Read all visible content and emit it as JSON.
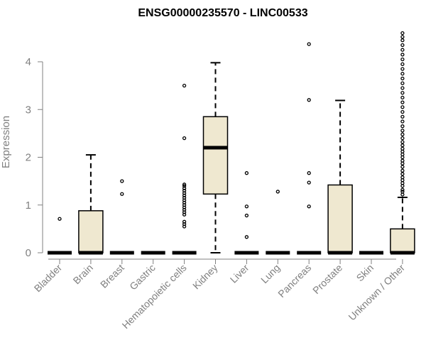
{
  "chart_data": {
    "type": "box",
    "title": "ENSG00000235570 - LINC00533",
    "xlabel": "",
    "ylabel": "Expression",
    "ylim": [
      0,
      4.6
    ],
    "yticks": [
      0,
      1,
      2,
      3,
      4
    ],
    "ytick_labels": [
      "0",
      "1",
      "2",
      "3",
      "4"
    ],
    "box_fill": "#EFE8D0",
    "categories": [
      "Bladder",
      "Brain",
      "Breast",
      "Gastric",
      "Hematopoietic cells",
      "Kidney",
      "Liver",
      "Lung",
      "Pancreas",
      "Prostate",
      "Skin",
      "Unknown / Other"
    ],
    "boxes": [
      {
        "category": "Bladder",
        "min": 0,
        "q1": 0,
        "median": 0,
        "q3": 0,
        "max": 0,
        "outliers": [
          0.71
        ]
      },
      {
        "category": "Brain",
        "min": 0,
        "q1": 0,
        "median": 0,
        "q3": 0.88,
        "max": 2.05,
        "outliers": []
      },
      {
        "category": "Breast",
        "min": 0,
        "q1": 0,
        "median": 0,
        "q3": 0,
        "max": 0,
        "outliers": [
          1.23,
          1.5
        ]
      },
      {
        "category": "Gastric",
        "min": 0,
        "q1": 0,
        "median": 0,
        "q3": 0,
        "max": 0,
        "outliers": []
      },
      {
        "category": "Hematopoietic cells",
        "min": 0,
        "q1": 0,
        "median": 0,
        "q3": 0,
        "max": 0,
        "outliers": [
          0.55,
          0.6,
          0.65,
          0.8,
          0.85,
          0.9,
          0.95,
          1.0,
          1.05,
          1.1,
          1.15,
          1.2,
          1.25,
          1.3,
          1.35,
          1.4,
          1.43,
          2.4,
          3.5
        ]
      },
      {
        "category": "Kidney",
        "min": 0,
        "q1": 1.23,
        "median": 2.2,
        "q3": 2.85,
        "max": 3.98,
        "outliers": []
      },
      {
        "category": "Liver",
        "min": 0,
        "q1": 0,
        "median": 0,
        "q3": 0,
        "max": 0,
        "outliers": [
          0.33,
          0.78,
          0.97,
          1.67
        ]
      },
      {
        "category": "Lung",
        "min": 0,
        "q1": 0,
        "median": 0,
        "q3": 0,
        "max": 0,
        "outliers": [
          1.28
        ]
      },
      {
        "category": "Pancreas",
        "min": 0,
        "q1": 0,
        "median": 0,
        "q3": 0,
        "max": 0,
        "outliers": [
          0.97,
          1.47,
          1.67,
          3.2,
          4.37
        ]
      },
      {
        "category": "Prostate",
        "min": 0,
        "q1": 0,
        "median": 0,
        "q3": 1.42,
        "max": 3.19,
        "outliers": []
      },
      {
        "category": "Skin",
        "min": 0,
        "q1": 0,
        "median": 0,
        "q3": 0,
        "max": 0,
        "outliers": []
      },
      {
        "category": "Unknown / Other",
        "min": 0,
        "q1": 0,
        "median": 0,
        "q3": 0.5,
        "max": 1.16,
        "outliers": [
          1.22,
          1.28,
          1.32,
          1.4,
          1.46,
          1.52,
          1.58,
          1.65,
          1.72,
          1.8,
          1.87,
          1.93,
          2.0,
          2.06,
          2.12,
          2.18,
          2.25,
          2.32,
          2.4,
          2.48,
          2.56,
          2.65,
          2.75,
          2.85,
          2.95,
          3.05,
          3.15,
          3.25,
          3.35,
          3.45,
          3.55,
          3.65,
          3.75,
          3.85,
          3.95,
          4.05,
          4.15,
          4.25,
          4.35,
          4.45,
          4.52,
          4.6
        ]
      }
    ]
  }
}
